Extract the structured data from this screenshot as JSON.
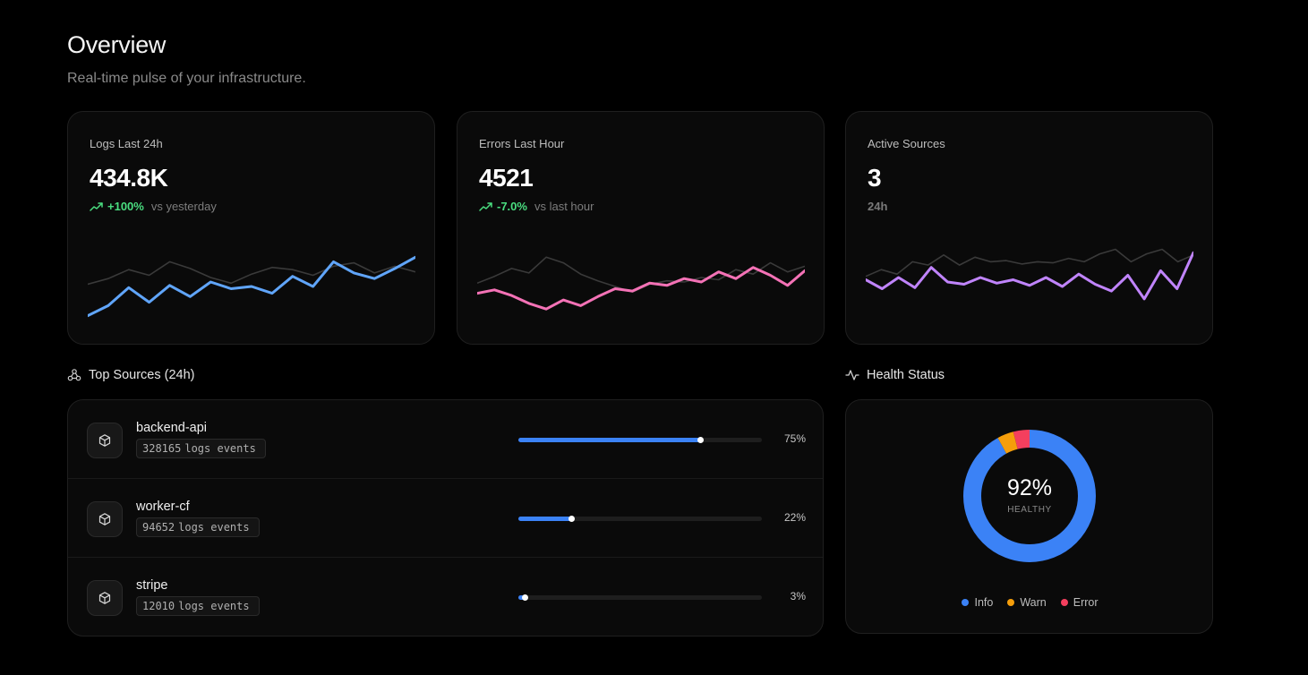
{
  "header": {
    "title": "Overview",
    "subtitle": "Real-time pulse of your infrastructure."
  },
  "stats": {
    "logs": {
      "label": "Logs Last 24h",
      "value": "434.8K",
      "change": "+100%",
      "comparison": "vs yesterday",
      "color": "#60a5fa",
      "current": [
        5,
        14,
        30,
        17,
        32,
        22,
        35,
        29,
        31,
        25,
        40,
        31,
        53,
        43,
        38,
        47,
        57
      ],
      "previous": [
        33,
        38,
        46,
        41,
        53,
        47,
        39,
        34,
        42,
        48,
        46,
        41,
        49,
        52,
        43,
        49,
        44
      ]
    },
    "errors": {
      "label": "Errors Last Hour",
      "value": "4521",
      "change": "-7.0%",
      "comparison": "vs last hour",
      "color": "#f472b6",
      "current": [
        25,
        28,
        23,
        16,
        11,
        19,
        14,
        22,
        29,
        27,
        34,
        32,
        38,
        35,
        44,
        38,
        48,
        41,
        32,
        45
      ],
      "previous": [
        34,
        40,
        47,
        43,
        57,
        52,
        42,
        36,
        31,
        26,
        33,
        36,
        35,
        39,
        37,
        46,
        42,
        52,
        44,
        49
      ],
      "previous_tail": [
        38
      ]
    },
    "sources": {
      "label": "Active Sources",
      "value": "3",
      "sub": "24h",
      "color": "#c084fc",
      "current": [
        37,
        29,
        39,
        30,
        48,
        35,
        33,
        39,
        34,
        37,
        32,
        39,
        31,
        42,
        33,
        27,
        41,
        20,
        45,
        29,
        61
      ],
      "previous": [
        40,
        46,
        42,
        53,
        50,
        59,
        50,
        57,
        53,
        54,
        51,
        53,
        52,
        56,
        53,
        60,
        64,
        53,
        60,
        64,
        53,
        59
      ]
    }
  },
  "top_sources": {
    "title": "Top Sources (24h)",
    "unit": "logs events",
    "items": [
      {
        "name": "backend-api",
        "count": "328165",
        "percent_label": "75%",
        "percent": 75
      },
      {
        "name": "worker-cf",
        "count": "94652",
        "percent_label": "22%",
        "percent": 22
      },
      {
        "name": "stripe",
        "count": "12010",
        "percent_label": "3%",
        "percent": 3
      }
    ]
  },
  "health": {
    "title": "Health Status",
    "value": "92%",
    "label": "HEALTHY",
    "segments": [
      {
        "name": "Info",
        "percent": 92,
        "color": "#3b82f6"
      },
      {
        "name": "Warn",
        "percent": 4,
        "color": "#f59e0b"
      },
      {
        "name": "Error",
        "percent": 4,
        "color": "#f43f5e"
      }
    ]
  }
}
